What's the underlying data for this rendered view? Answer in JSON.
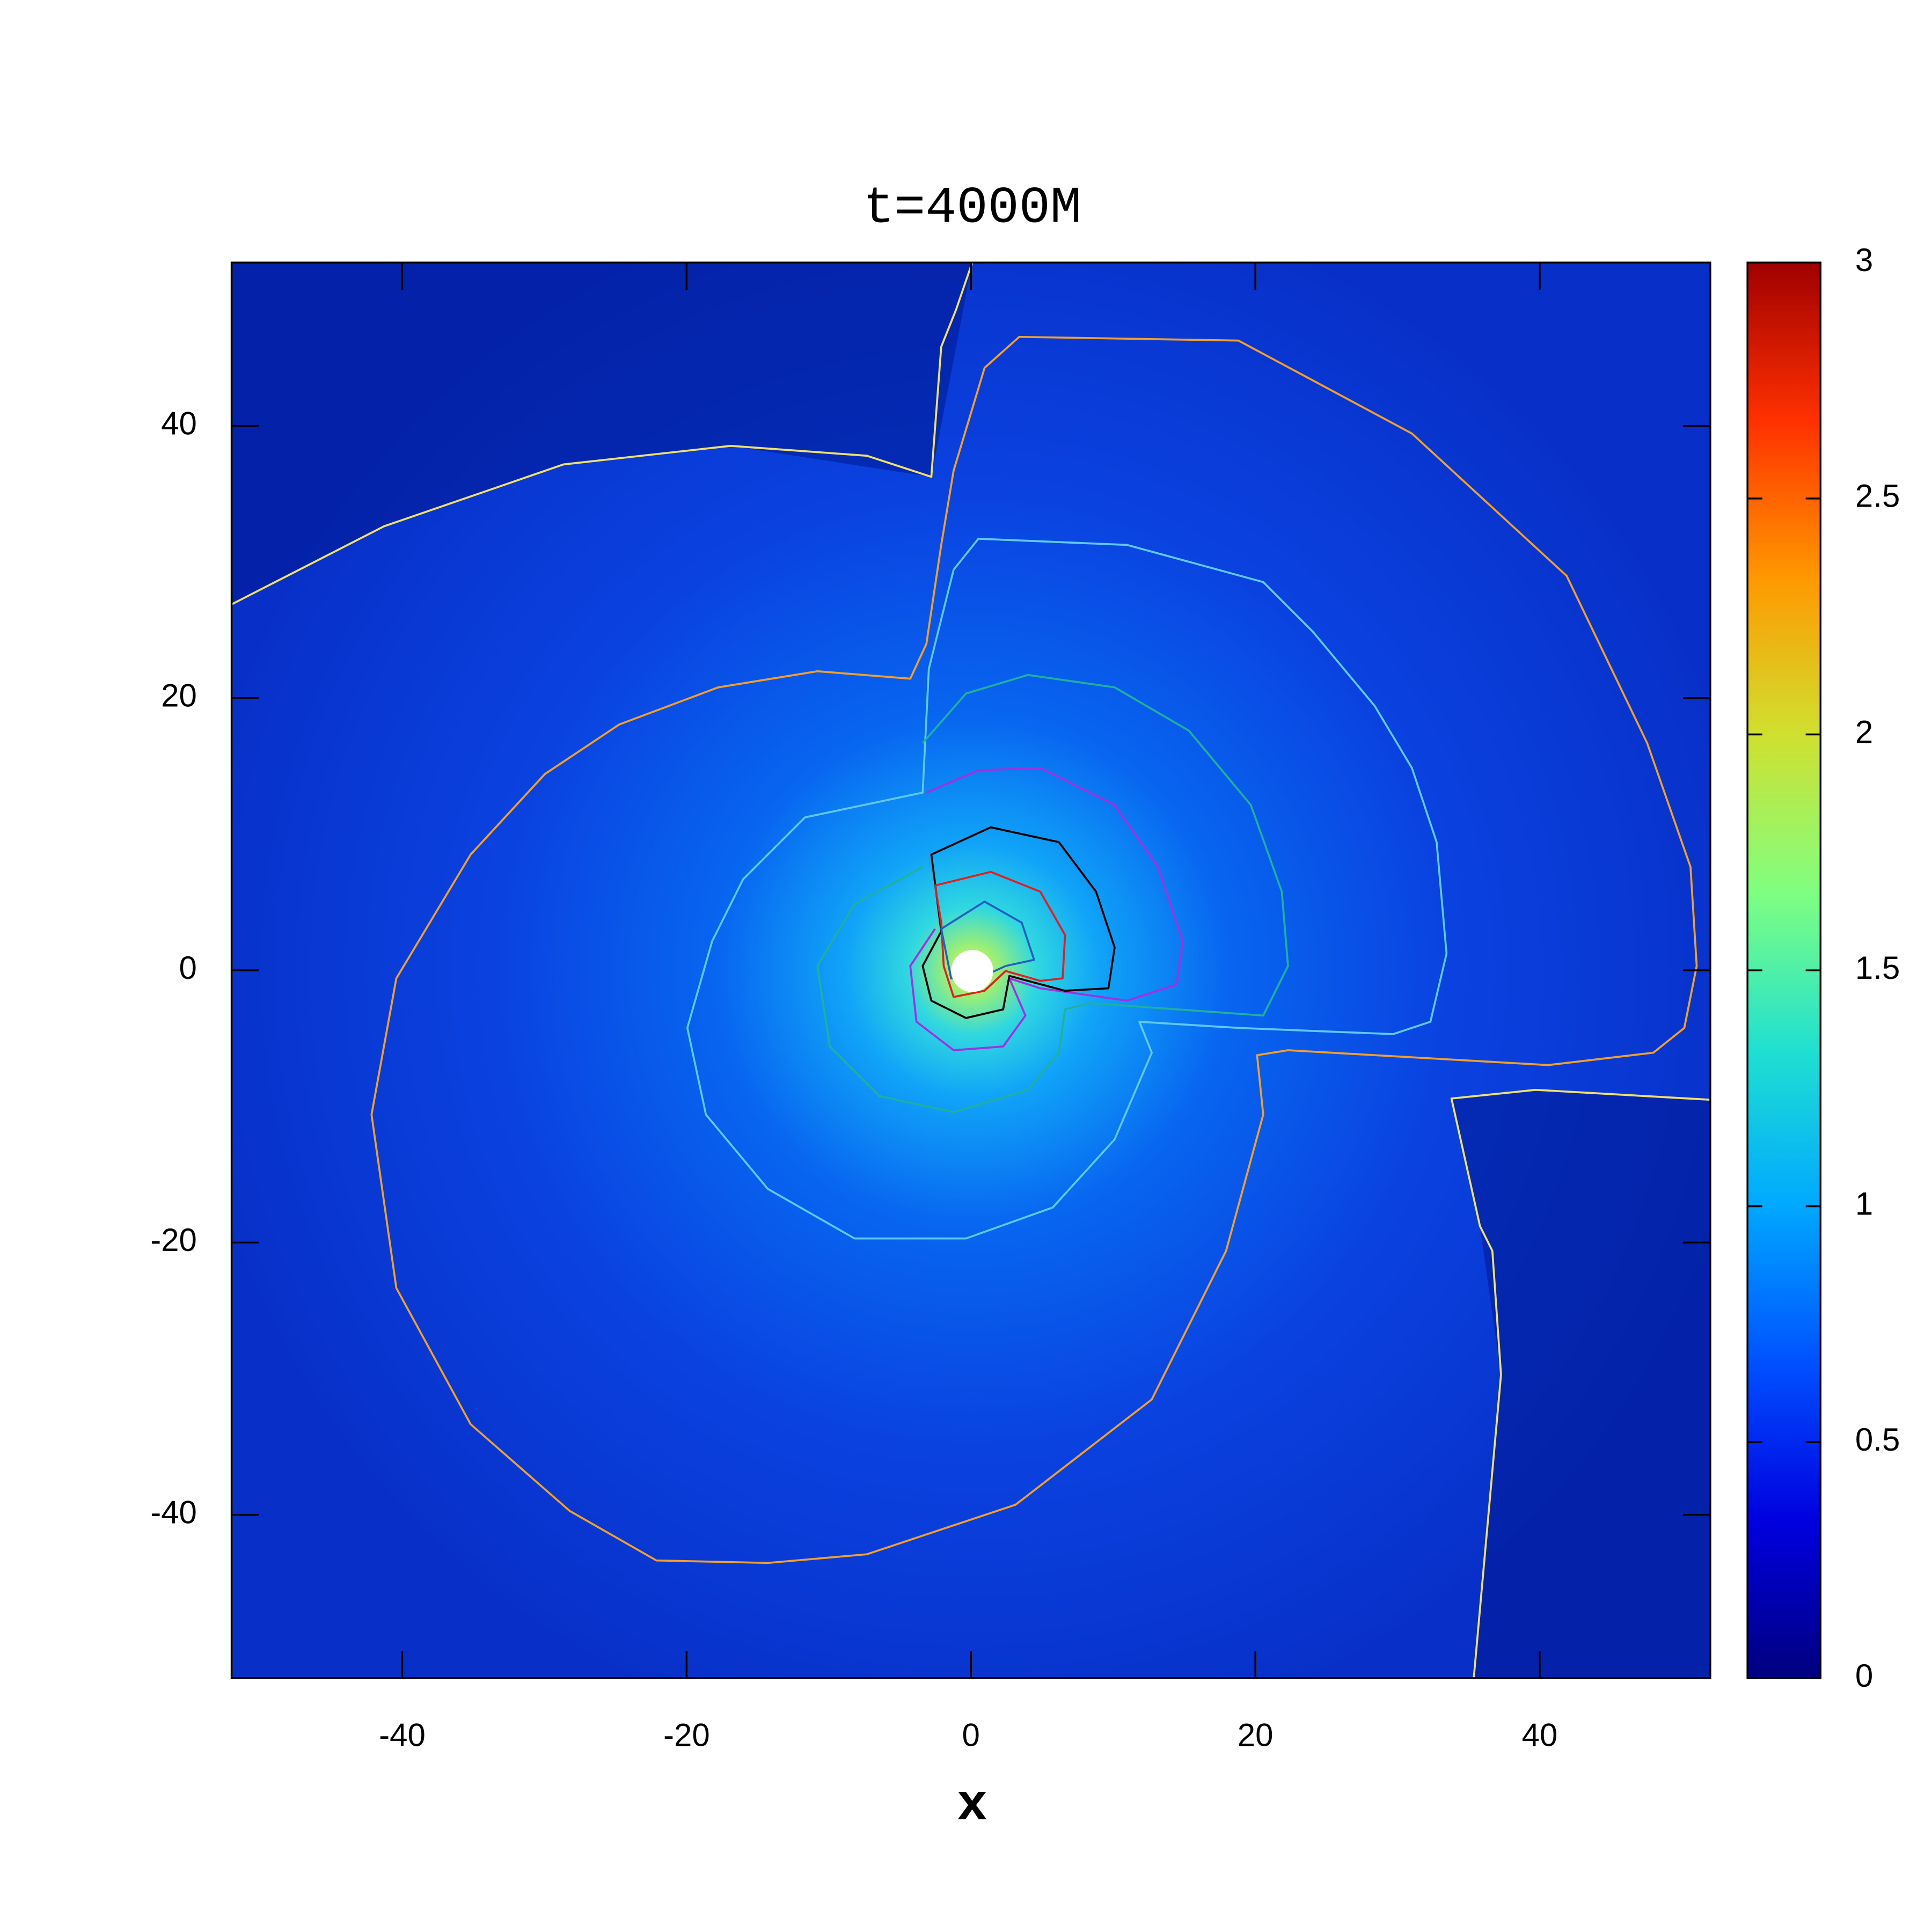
{
  "chart_data": {
    "type": "heatmap",
    "title": "t=4000M",
    "x_label": "x",
    "xlim": [
      -52,
      52
    ],
    "ylim": [
      -52,
      52
    ],
    "xticks": [
      -40,
      -20,
      0,
      20,
      40
    ],
    "yticks": [
      -40,
      -20,
      0,
      20,
      40
    ],
    "clim": [
      0,
      3
    ],
    "cticks": [
      0,
      0.5,
      1,
      1.5,
      2,
      2.5,
      3
    ],
    "colormap": [
      "#00007f",
      "#0000e0",
      "#0050ff",
      "#00a8ff",
      "#20e0d0",
      "#80ff80",
      "#d0e030",
      "#ff9800",
      "#ff3000",
      "#a00000"
    ]
  }
}
